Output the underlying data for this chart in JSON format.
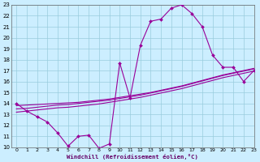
{
  "xlabel": "Windchill (Refroidissement éolien,°C)",
  "bg_color": "#cceeff",
  "grid_color": "#99ccdd",
  "line_color": "#990099",
  "ylim": [
    10,
    23
  ],
  "xlim": [
    -0.5,
    23
  ],
  "yticks": [
    10,
    11,
    12,
    13,
    14,
    15,
    16,
    17,
    18,
    19,
    20,
    21,
    22,
    23
  ],
  "xticks": [
    0,
    1,
    2,
    3,
    4,
    5,
    6,
    7,
    8,
    9,
    10,
    11,
    12,
    13,
    14,
    15,
    16,
    17,
    18,
    19,
    20,
    21,
    22,
    23
  ],
  "main_x": [
    0,
    1,
    2,
    3,
    4,
    5,
    6,
    7,
    8,
    9,
    10,
    11,
    12,
    13,
    14,
    15,
    16,
    17,
    18,
    19,
    20,
    21,
    22,
    23
  ],
  "main_y": [
    14.0,
    13.3,
    12.8,
    12.3,
    11.3,
    10.1,
    11.0,
    11.1,
    9.9,
    10.3,
    17.7,
    14.5,
    19.3,
    21.5,
    21.7,
    22.7,
    23.0,
    22.2,
    21.0,
    18.4,
    17.3,
    17.3,
    16.0,
    17.0
  ],
  "line1_y": [
    13.8,
    13.85,
    13.9,
    13.95,
    14.0,
    14.05,
    14.1,
    14.2,
    14.3,
    14.4,
    14.55,
    14.7,
    14.85,
    15.0,
    15.2,
    15.4,
    15.6,
    15.85,
    16.1,
    16.35,
    16.6,
    16.8,
    17.0,
    17.2
  ],
  "line2_y": [
    13.5,
    13.55,
    13.65,
    13.75,
    13.85,
    13.9,
    14.0,
    14.1,
    14.2,
    14.3,
    14.45,
    14.6,
    14.75,
    14.95,
    15.15,
    15.35,
    15.55,
    15.8,
    16.05,
    16.3,
    16.55,
    16.75,
    16.95,
    17.15
  ],
  "line3_y": [
    13.2,
    13.3,
    13.4,
    13.5,
    13.6,
    13.65,
    13.75,
    13.85,
    13.95,
    14.1,
    14.25,
    14.4,
    14.55,
    14.75,
    14.95,
    15.15,
    15.35,
    15.6,
    15.85,
    16.1,
    16.35,
    16.55,
    16.75,
    16.95
  ]
}
